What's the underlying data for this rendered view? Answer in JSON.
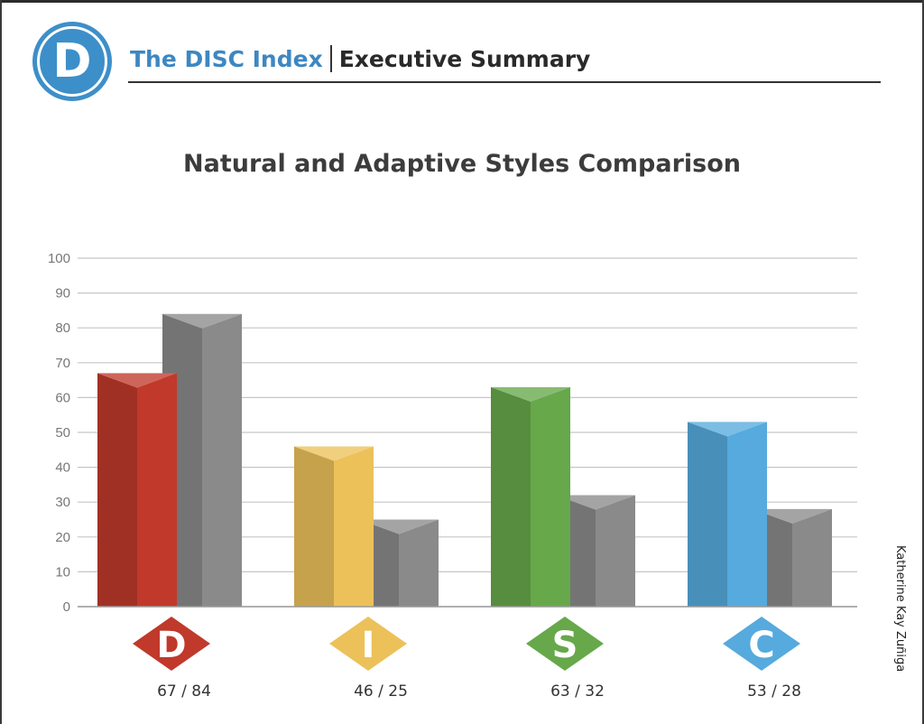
{
  "header": {
    "logo_letter": "D",
    "brand": "The DISC Index",
    "section": "Executive Summary"
  },
  "author": "Katherine Kay Zuñiga",
  "chart_data": {
    "type": "bar",
    "title": "Natural and Adaptive Styles Comparison",
    "ylim": [
      0,
      100
    ],
    "yticks": [
      0,
      10,
      20,
      30,
      40,
      50,
      60,
      70,
      80,
      90,
      100
    ],
    "grid": true,
    "categories": [
      "D",
      "I",
      "S",
      "C"
    ],
    "series": [
      {
        "name": "Natural",
        "values": [
          67,
          46,
          63,
          53
        ]
      },
      {
        "name": "Adaptive",
        "values": [
          84,
          25,
          32,
          28
        ]
      }
    ],
    "labels": [
      "67 / 84",
      "46 / 25",
      "63 / 32",
      "53 / 28"
    ],
    "colors": {
      "D": "#c0392b",
      "I": "#ecc15a",
      "S": "#66a84a",
      "C": "#56aadd",
      "adaptive": "#8a8a8a"
    }
  }
}
